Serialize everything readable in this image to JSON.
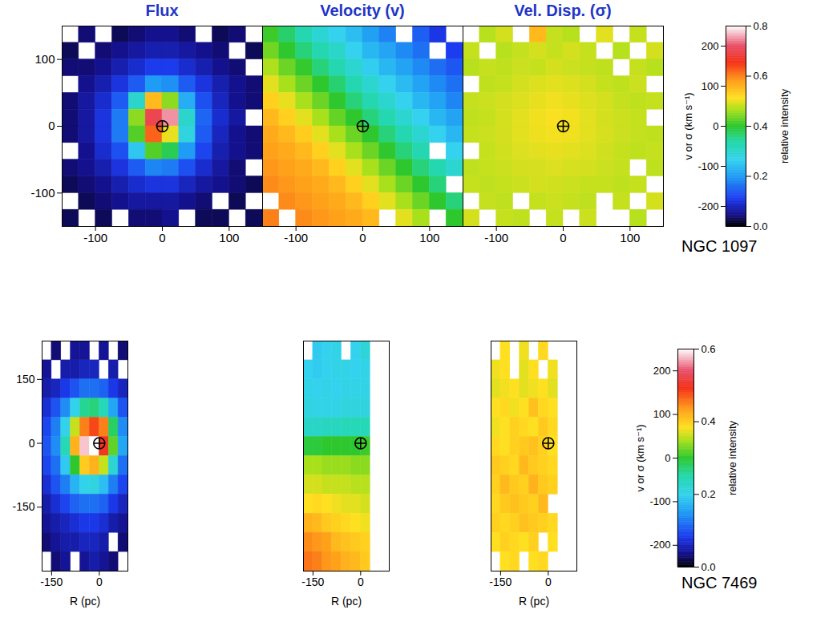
{
  "chart_data": [
    {
      "type": "heatmap",
      "title": "NGC 1097",
      "titles": [
        "Flux",
        "Velocity (v)",
        "Vel. Disp. (σ)"
      ],
      "xlim": [
        -150,
        150
      ],
      "ylim": [
        -150,
        150
      ],
      "xticks": [
        -100,
        0,
        100
      ],
      "yticks": [
        -100,
        0,
        100
      ],
      "nucleus": [
        0,
        0
      ],
      "flux": {
        "cells": [
          [
            null,
            0.04,
            null,
            0.03,
            0.04,
            0.05,
            0.05,
            0.04,
            null,
            0.03,
            0.04,
            null
          ],
          [
            0.03,
            null,
            0.04,
            0.05,
            0.06,
            0.07,
            0.07,
            0.06,
            0.05,
            0.04,
            null,
            0.03
          ],
          [
            0.04,
            0.04,
            0.05,
            0.07,
            0.09,
            0.11,
            0.11,
            0.09,
            0.07,
            0.05,
            0.04,
            null
          ],
          [
            null,
            0.05,
            0.07,
            0.1,
            0.14,
            0.2,
            0.19,
            0.14,
            0.1,
            0.07,
            0.05,
            0.04
          ],
          [
            0.04,
            0.06,
            0.09,
            0.14,
            0.3,
            0.55,
            0.45,
            0.22,
            0.13,
            0.08,
            0.05,
            0.04
          ],
          [
            0.04,
            0.06,
            0.1,
            0.17,
            0.45,
            0.7,
            0.75,
            0.3,
            0.15,
            0.09,
            0.06,
            null
          ],
          [
            0.04,
            0.06,
            0.1,
            0.17,
            0.42,
            0.62,
            0.5,
            0.28,
            0.14,
            0.08,
            0.05,
            0.04
          ],
          [
            null,
            0.05,
            0.09,
            0.13,
            0.25,
            0.42,
            0.38,
            0.2,
            0.12,
            0.07,
            0.05,
            0.04
          ],
          [
            0.04,
            0.05,
            0.07,
            0.1,
            0.14,
            0.18,
            0.17,
            0.13,
            0.09,
            0.06,
            0.04,
            null
          ],
          [
            0.03,
            0.04,
            0.05,
            0.07,
            0.09,
            0.1,
            0.1,
            0.08,
            0.06,
            0.05,
            0.04,
            0.03
          ],
          [
            null,
            0.03,
            0.04,
            0.05,
            0.06,
            0.06,
            0.06,
            0.05,
            0.04,
            null,
            0.03,
            null
          ],
          [
            0.03,
            null,
            0.03,
            null,
            0.04,
            0.04,
            0.05,
            null,
            0.03,
            0.03,
            null,
            0.03
          ]
        ]
      },
      "velocity": {
        "cells": [
          [
            5,
            -20,
            -45,
            -68,
            -85,
            -100,
            -122,
            -140,
            null,
            -160,
            -185,
            null
          ],
          [
            22,
            0,
            -25,
            -45,
            -62,
            -85,
            -105,
            -118,
            -135,
            -150,
            null,
            -180
          ],
          [
            42,
            20,
            2,
            -25,
            -45,
            -65,
            -88,
            -105,
            -120,
            -135,
            -152,
            -165
          ],
          [
            60,
            40,
            20,
            0,
            -22,
            -45,
            -65,
            -85,
            -102,
            -120,
            -135,
            -150
          ],
          [
            80,
            62,
            40,
            20,
            0,
            -25,
            -45,
            -65,
            -85,
            -105,
            -120,
            -138
          ],
          [
            95,
            80,
            60,
            40,
            18,
            0,
            -25,
            -45,
            -65,
            -85,
            -105,
            -120
          ],
          [
            105,
            95,
            82,
            60,
            40,
            20,
            0,
            -25,
            -45,
            -65,
            -85,
            -105
          ],
          [
            110,
            105,
            95,
            80,
            60,
            40,
            20,
            0,
            -25,
            -45,
            null,
            -85
          ],
          [
            115,
            110,
            105,
            95,
            80,
            60,
            40,
            20,
            0,
            -25,
            -45,
            -65
          ],
          [
            120,
            115,
            110,
            105,
            95,
            80,
            60,
            40,
            20,
            0,
            -25,
            null
          ],
          [
            null,
            120,
            115,
            110,
            105,
            95,
            80,
            60,
            40,
            20,
            0,
            -25
          ],
          [
            125,
            null,
            120,
            115,
            110,
            105,
            95,
            null,
            60,
            40,
            null,
            0
          ]
        ]
      },
      "dispersion": {
        "cells": [
          [
            null,
            45,
            55,
            null,
            95,
            50,
            45,
            null,
            60,
            null,
            50,
            null
          ],
          [
            50,
            null,
            45,
            50,
            55,
            50,
            55,
            50,
            null,
            45,
            null,
            55
          ],
          [
            45,
            50,
            48,
            52,
            50,
            55,
            52,
            50,
            48,
            null,
            50,
            45
          ],
          [
            null,
            48,
            50,
            55,
            58,
            60,
            58,
            55,
            50,
            48,
            52,
            null
          ],
          [
            50,
            52,
            55,
            58,
            62,
            65,
            62,
            58,
            55,
            50,
            48,
            50
          ],
          [
            48,
            50,
            55,
            60,
            65,
            68,
            66,
            60,
            55,
            52,
            50,
            null
          ],
          [
            50,
            52,
            55,
            60,
            64,
            66,
            65,
            60,
            56,
            52,
            50,
            48
          ],
          [
            null,
            50,
            54,
            58,
            60,
            62,
            60,
            58,
            54,
            50,
            48,
            50
          ],
          [
            48,
            50,
            52,
            55,
            56,
            58,
            56,
            55,
            52,
            50,
            null,
            48
          ],
          [
            50,
            48,
            50,
            52,
            55,
            54,
            52,
            50,
            50,
            48,
            50,
            null
          ],
          [
            null,
            50,
            48,
            null,
            50,
            52,
            50,
            48,
            null,
            50,
            null,
            55
          ],
          [
            55,
            null,
            50,
            48,
            null,
            50,
            null,
            52,
            null,
            null,
            45,
            null
          ]
        ]
      },
      "colorbar": {
        "label": "v or σ (km s⁻¹)",
        "lim": [
          -250,
          250
        ],
        "ticks": [
          -200,
          -100,
          0,
          100,
          200
        ],
        "intensity_label": "relative intensity",
        "intensity_lim": [
          0,
          0.8
        ],
        "intensity_ticks": [
          {
            "value": 0,
            "label": "0.0"
          },
          0.2,
          0.4,
          0.6,
          0.8
        ]
      }
    },
    {
      "type": "heatmap",
      "title": "NGC 7469",
      "xlabel": "R (pc)",
      "xlim": [
        -180,
        90
      ],
      "ylim": [
        -300,
        240
      ],
      "xticks": [
        -150,
        0
      ],
      "yticks": [
        -150,
        0,
        150
      ],
      "nucleus": [
        0,
        0
      ],
      "flux": {
        "cells": [
          [
            null,
            0.03,
            null,
            0.04,
            0.04,
            null,
            0.04,
            null,
            0.03
          ],
          [
            0.04,
            null,
            0.05,
            0.05,
            0.06,
            0.06,
            null,
            0.05,
            null
          ],
          [
            0.05,
            0.06,
            0.08,
            0.1,
            0.12,
            0.12,
            0.11,
            0.08,
            0.06
          ],
          [
            0.07,
            0.1,
            0.14,
            0.2,
            0.26,
            0.27,
            0.24,
            0.16,
            0.1
          ],
          [
            0.09,
            0.13,
            0.2,
            0.36,
            0.45,
            0.48,
            0.45,
            0.28,
            0.14
          ],
          [
            0.1,
            0.14,
            0.24,
            0.42,
            0.58,
            0.6,
            0.5,
            0.32,
            0.16
          ],
          [
            0.09,
            0.12,
            0.19,
            0.3,
            0.4,
            0.42,
            0.36,
            0.22,
            0.12
          ],
          [
            0.07,
            0.1,
            0.13,
            0.17,
            0.2,
            0.21,
            0.18,
            0.13,
            0.09
          ],
          [
            0.05,
            0.07,
            0.09,
            0.11,
            0.12,
            0.12,
            0.11,
            0.08,
            0.06
          ],
          [
            0.04,
            0.05,
            0.06,
            0.07,
            0.08,
            0.08,
            0.07,
            0.05,
            0.04
          ],
          [
            0.03,
            0.04,
            0.05,
            0.05,
            0.06,
            0.06,
            0.05,
            null,
            0.03
          ],
          [
            null,
            0.03,
            0.04,
            null,
            0.04,
            0.05,
            0.04,
            0.03,
            null
          ]
        ]
      },
      "velocity": {
        "cells": [
          [
            null,
            -90,
            -85,
            -80,
            null,
            -85,
            -70,
            null,
            null
          ],
          [
            -85,
            -90,
            -85,
            -80,
            -80,
            -85,
            -80,
            null,
            null
          ],
          [
            -80,
            -85,
            -80,
            -85,
            -80,
            -80,
            -80,
            null,
            null
          ],
          [
            -75,
            -80,
            -80,
            -80,
            -75,
            -75,
            -75,
            null,
            null
          ],
          [
            -60,
            -60,
            -55,
            -55,
            -50,
            -50,
            -50,
            null,
            null
          ],
          [
            -5,
            -5,
            0,
            0,
            0,
            0,
            5,
            null,
            null
          ],
          [
            40,
            40,
            35,
            35,
            35,
            30,
            30,
            null,
            null
          ],
          [
            55,
            55,
            50,
            50,
            50,
            45,
            45,
            null,
            null
          ],
          [
            70,
            75,
            70,
            65,
            60,
            60,
            55,
            null,
            null
          ],
          [
            100,
            95,
            85,
            80,
            75,
            70,
            65,
            null,
            null
          ],
          [
            120,
            115,
            110,
            95,
            90,
            85,
            80,
            null,
            null
          ],
          [
            130,
            125,
            115,
            110,
            100,
            95,
            85,
            null,
            null
          ]
        ]
      },
      "dispersion": {
        "cells": [
          [
            null,
            70,
            null,
            65,
            null,
            75,
            null,
            null,
            null
          ],
          [
            65,
            70,
            null,
            60,
            70,
            null,
            65,
            null,
            null
          ],
          [
            60,
            65,
            70,
            60,
            65,
            70,
            60,
            null,
            null
          ],
          [
            70,
            75,
            65,
            70,
            90,
            75,
            70,
            null,
            null
          ],
          [
            65,
            70,
            80,
            75,
            70,
            85,
            75,
            null,
            null
          ],
          [
            75,
            70,
            80,
            85,
            90,
            80,
            70,
            null,
            null
          ],
          [
            85,
            80,
            75,
            95,
            85,
            80,
            75,
            null,
            null
          ],
          [
            80,
            95,
            85,
            80,
            100,
            85,
            80,
            null,
            null
          ],
          [
            75,
            85,
            90,
            85,
            80,
            95,
            null,
            null,
            null
          ],
          [
            80,
            75,
            80,
            90,
            85,
            80,
            75,
            null,
            null
          ],
          [
            70,
            80,
            75,
            70,
            80,
            null,
            70,
            null,
            null
          ],
          [
            null,
            70,
            75,
            null,
            70,
            75,
            null,
            null,
            null
          ]
        ]
      },
      "colorbar": {
        "label": "v or σ (km s⁻¹)",
        "lim": [
          -250,
          250
        ],
        "ticks": [
          -200,
          -100,
          0,
          100,
          200
        ],
        "intensity_label": "relative intensity",
        "intensity_lim": [
          0,
          0.6
        ],
        "intensity_ticks": [
          {
            "value": 0,
            "label": "0.0"
          },
          0.2,
          0.4,
          0.6
        ]
      }
    }
  ]
}
